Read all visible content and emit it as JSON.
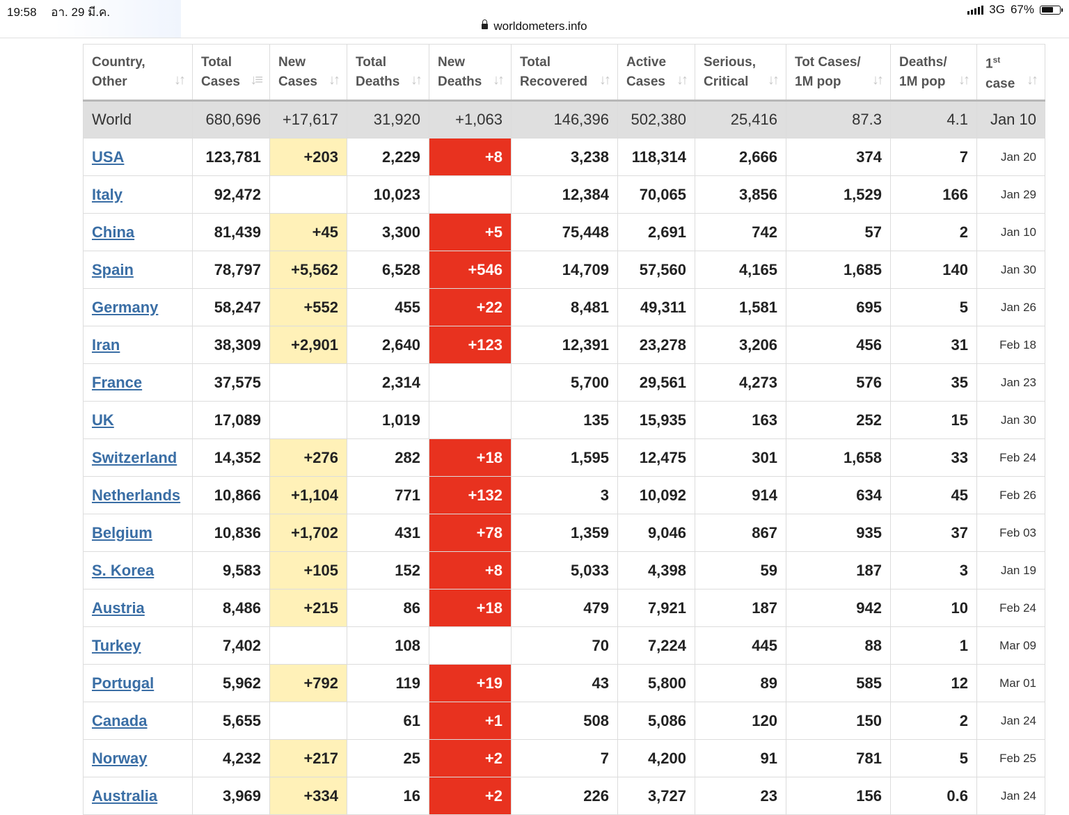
{
  "status_bar": {
    "time": "19:58",
    "date": "อา. 29 มี.ค.",
    "network": "3G",
    "battery": "67%",
    "battery_level": 0.67
  },
  "browser": {
    "url": "worldometers.info"
  },
  "table": {
    "headers": [
      {
        "l1": "Country,",
        "l2": "Other"
      },
      {
        "l1": "Total",
        "l2": "Cases"
      },
      {
        "l1": "New",
        "l2": "Cases"
      },
      {
        "l1": "Total",
        "l2": "Deaths"
      },
      {
        "l1": "New",
        "l2": "Deaths"
      },
      {
        "l1": "Total",
        "l2": "Recovered"
      },
      {
        "l1": "Active",
        "l2": "Cases"
      },
      {
        "l1": "Serious,",
        "l2": "Critical"
      },
      {
        "l1": "Tot Cases/",
        "l2": "1M pop"
      },
      {
        "l1": "Deaths/",
        "l2": "1M pop"
      },
      {
        "l1": "1",
        "sup": "st",
        "l2": "case"
      }
    ],
    "world": {
      "country": "World",
      "total_cases": "680,696",
      "new_cases": "+17,617",
      "total_deaths": "31,920",
      "new_deaths": "+1,063",
      "total_recovered": "146,396",
      "active_cases": "502,380",
      "serious": "25,416",
      "cases_per_1m": "87.3",
      "deaths_per_1m": "4.1",
      "first_case": "Jan 10"
    },
    "rows": [
      {
        "country": "USA",
        "total_cases": "123,781",
        "new_cases": "+203",
        "total_deaths": "2,229",
        "new_deaths": "+8",
        "total_recovered": "3,238",
        "active_cases": "118,314",
        "serious": "2,666",
        "cases_per_1m": "374",
        "deaths_per_1m": "7",
        "first_case": "Jan 20"
      },
      {
        "country": "Italy",
        "total_cases": "92,472",
        "new_cases": "",
        "total_deaths": "10,023",
        "new_deaths": "",
        "total_recovered": "12,384",
        "active_cases": "70,065",
        "serious": "3,856",
        "cases_per_1m": "1,529",
        "deaths_per_1m": "166",
        "first_case": "Jan 29"
      },
      {
        "country": "China",
        "total_cases": "81,439",
        "new_cases": "+45",
        "total_deaths": "3,300",
        "new_deaths": "+5",
        "total_recovered": "75,448",
        "active_cases": "2,691",
        "serious": "742",
        "cases_per_1m": "57",
        "deaths_per_1m": "2",
        "first_case": "Jan 10"
      },
      {
        "country": "Spain",
        "total_cases": "78,797",
        "new_cases": "+5,562",
        "total_deaths": "6,528",
        "new_deaths": "+546",
        "total_recovered": "14,709",
        "active_cases": "57,560",
        "serious": "4,165",
        "cases_per_1m": "1,685",
        "deaths_per_1m": "140",
        "first_case": "Jan 30"
      },
      {
        "country": "Germany",
        "total_cases": "58,247",
        "new_cases": "+552",
        "total_deaths": "455",
        "new_deaths": "+22",
        "total_recovered": "8,481",
        "active_cases": "49,311",
        "serious": "1,581",
        "cases_per_1m": "695",
        "deaths_per_1m": "5",
        "first_case": "Jan 26"
      },
      {
        "country": "Iran",
        "total_cases": "38,309",
        "new_cases": "+2,901",
        "total_deaths": "2,640",
        "new_deaths": "+123",
        "total_recovered": "12,391",
        "active_cases": "23,278",
        "serious": "3,206",
        "cases_per_1m": "456",
        "deaths_per_1m": "31",
        "first_case": "Feb 18"
      },
      {
        "country": "France",
        "total_cases": "37,575",
        "new_cases": "",
        "total_deaths": "2,314",
        "new_deaths": "",
        "total_recovered": "5,700",
        "active_cases": "29,561",
        "serious": "4,273",
        "cases_per_1m": "576",
        "deaths_per_1m": "35",
        "first_case": "Jan 23"
      },
      {
        "country": "UK",
        "total_cases": "17,089",
        "new_cases": "",
        "total_deaths": "1,019",
        "new_deaths": "",
        "total_recovered": "135",
        "active_cases": "15,935",
        "serious": "163",
        "cases_per_1m": "252",
        "deaths_per_1m": "15",
        "first_case": "Jan 30"
      },
      {
        "country": "Switzerland",
        "total_cases": "14,352",
        "new_cases": "+276",
        "total_deaths": "282",
        "new_deaths": "+18",
        "total_recovered": "1,595",
        "active_cases": "12,475",
        "serious": "301",
        "cases_per_1m": "1,658",
        "deaths_per_1m": "33",
        "first_case": "Feb 24"
      },
      {
        "country": "Netherlands",
        "total_cases": "10,866",
        "new_cases": "+1,104",
        "total_deaths": "771",
        "new_deaths": "+132",
        "total_recovered": "3",
        "active_cases": "10,092",
        "serious": "914",
        "cases_per_1m": "634",
        "deaths_per_1m": "45",
        "first_case": "Feb 26"
      },
      {
        "country": "Belgium",
        "total_cases": "10,836",
        "new_cases": "+1,702",
        "total_deaths": "431",
        "new_deaths": "+78",
        "total_recovered": "1,359",
        "active_cases": "9,046",
        "serious": "867",
        "cases_per_1m": "935",
        "deaths_per_1m": "37",
        "first_case": "Feb 03"
      },
      {
        "country": "S. Korea",
        "total_cases": "9,583",
        "new_cases": "+105",
        "total_deaths": "152",
        "new_deaths": "+8",
        "total_recovered": "5,033",
        "active_cases": "4,398",
        "serious": "59",
        "cases_per_1m": "187",
        "deaths_per_1m": "3",
        "first_case": "Jan 19"
      },
      {
        "country": "Austria",
        "total_cases": "8,486",
        "new_cases": "+215",
        "total_deaths": "86",
        "new_deaths": "+18",
        "total_recovered": "479",
        "active_cases": "7,921",
        "serious": "187",
        "cases_per_1m": "942",
        "deaths_per_1m": "10",
        "first_case": "Feb 24"
      },
      {
        "country": "Turkey",
        "total_cases": "7,402",
        "new_cases": "",
        "total_deaths": "108",
        "new_deaths": "",
        "total_recovered": "70",
        "active_cases": "7,224",
        "serious": "445",
        "cases_per_1m": "88",
        "deaths_per_1m": "1",
        "first_case": "Mar 09"
      },
      {
        "country": "Portugal",
        "total_cases": "5,962",
        "new_cases": "+792",
        "total_deaths": "119",
        "new_deaths": "+19",
        "total_recovered": "43",
        "active_cases": "5,800",
        "serious": "89",
        "cases_per_1m": "585",
        "deaths_per_1m": "12",
        "first_case": "Mar 01"
      },
      {
        "country": "Canada",
        "total_cases": "5,655",
        "new_cases": "",
        "total_deaths": "61",
        "new_deaths": "+1",
        "total_recovered": "508",
        "active_cases": "5,086",
        "serious": "120",
        "cases_per_1m": "150",
        "deaths_per_1m": "2",
        "first_case": "Jan 24"
      },
      {
        "country": "Norway",
        "total_cases": "4,232",
        "new_cases": "+217",
        "total_deaths": "25",
        "new_deaths": "+2",
        "total_recovered": "7",
        "active_cases": "4,200",
        "serious": "91",
        "cases_per_1m": "781",
        "deaths_per_1m": "5",
        "first_case": "Feb 25"
      },
      {
        "country": "Australia",
        "total_cases": "3,969",
        "new_cases": "+334",
        "total_deaths": "16",
        "new_deaths": "+2",
        "total_recovered": "226",
        "active_cases": "3,727",
        "serious": "23",
        "cases_per_1m": "156",
        "deaths_per_1m": "0.6",
        "first_case": "Jan 24"
      }
    ]
  },
  "colors": {
    "new_cases_highlight": "#fff1b8",
    "new_deaths_highlight": "#e8321f",
    "link": "#3a6ea5",
    "world_row": "#dfdfdf"
  }
}
